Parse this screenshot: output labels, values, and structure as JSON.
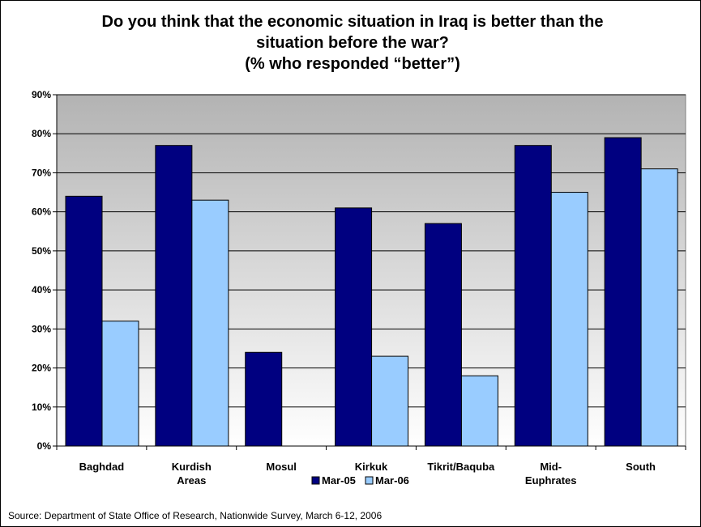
{
  "chart_data": {
    "type": "bar",
    "title_lines": [
      "Do you think that the economic situation in Iraq is better than the",
      "situation before the war?",
      "(% who responded “better”)"
    ],
    "categories": [
      [
        "Baghdad"
      ],
      [
        "Kurdish",
        "Areas"
      ],
      [
        "Mosul"
      ],
      [
        "Kirkuk"
      ],
      [
        "Tikrit/Baquba"
      ],
      [
        "Mid-",
        "Euphrates"
      ],
      [
        "South"
      ]
    ],
    "series": [
      {
        "name": "Mar-05",
        "color": "#000080",
        "values": [
          64,
          77,
          24,
          61,
          57,
          77,
          79
        ]
      },
      {
        "name": "Mar-06",
        "color": "#99ccff",
        "values": [
          32,
          63,
          null,
          23,
          18,
          65,
          71
        ]
      }
    ],
    "ylim": [
      0,
      90
    ],
    "yticks": [
      0,
      10,
      20,
      30,
      40,
      50,
      60,
      70,
      80,
      90
    ],
    "ytick_labels": [
      "0%",
      "10%",
      "20%",
      "30%",
      "40%",
      "50%",
      "60%",
      "70%",
      "80%",
      "90%"
    ],
    "xlabel": "",
    "ylabel": "",
    "grid": true,
    "legend_position": "bottom-center",
    "plot_background": "gradient gray to white (top to bottom)"
  },
  "source": "Source:  Department of State Office of Research, Nationwide Survey, March 6-12, 2006"
}
